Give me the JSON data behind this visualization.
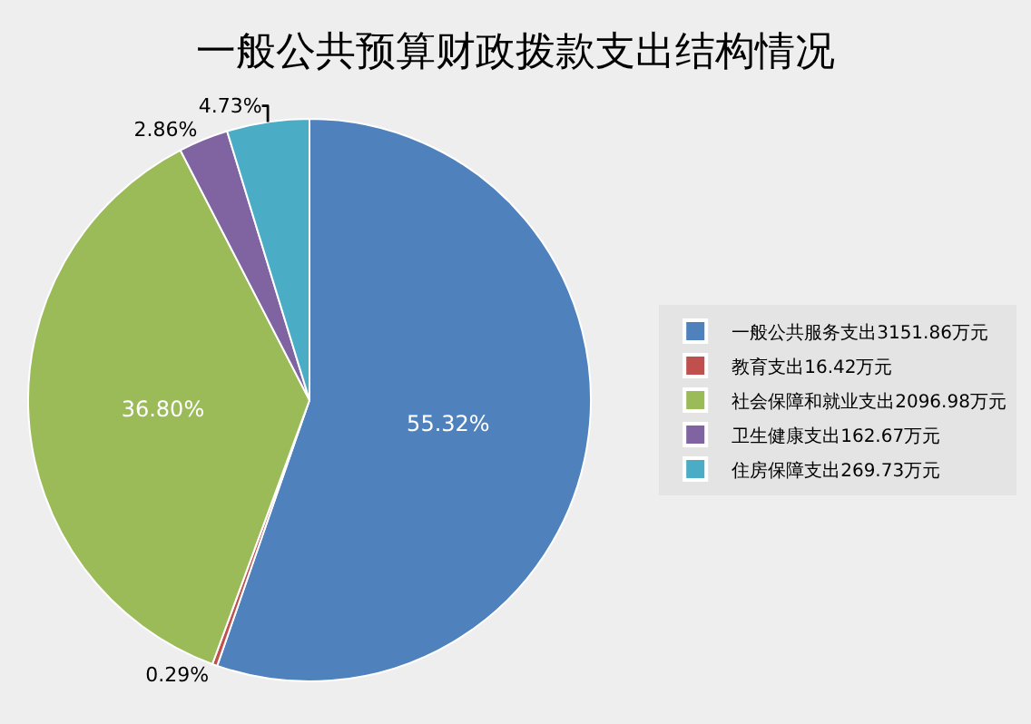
{
  "chart_data": {
    "type": "pie",
    "title": "一般公共预算财政拨款支出结构情况",
    "categories": [
      "一般公共服务支出3151.86万元",
      "教育支出16.42万元",
      "社会保障和就业支出2096.98万元",
      "卫生健康支出162.67万元",
      "住房保障支出269.73万元"
    ],
    "values": [
      55.32,
      0.29,
      36.8,
      2.86,
      4.73
    ],
    "value_labels": [
      "55.32%",
      "0.29%",
      "36.80%",
      "2.86%",
      "4.73%"
    ],
    "colors": [
      "#4f81bd",
      "#c0504d",
      "#9bbb59",
      "#8064a2",
      "#4bacc6"
    ],
    "legend": "right"
  }
}
